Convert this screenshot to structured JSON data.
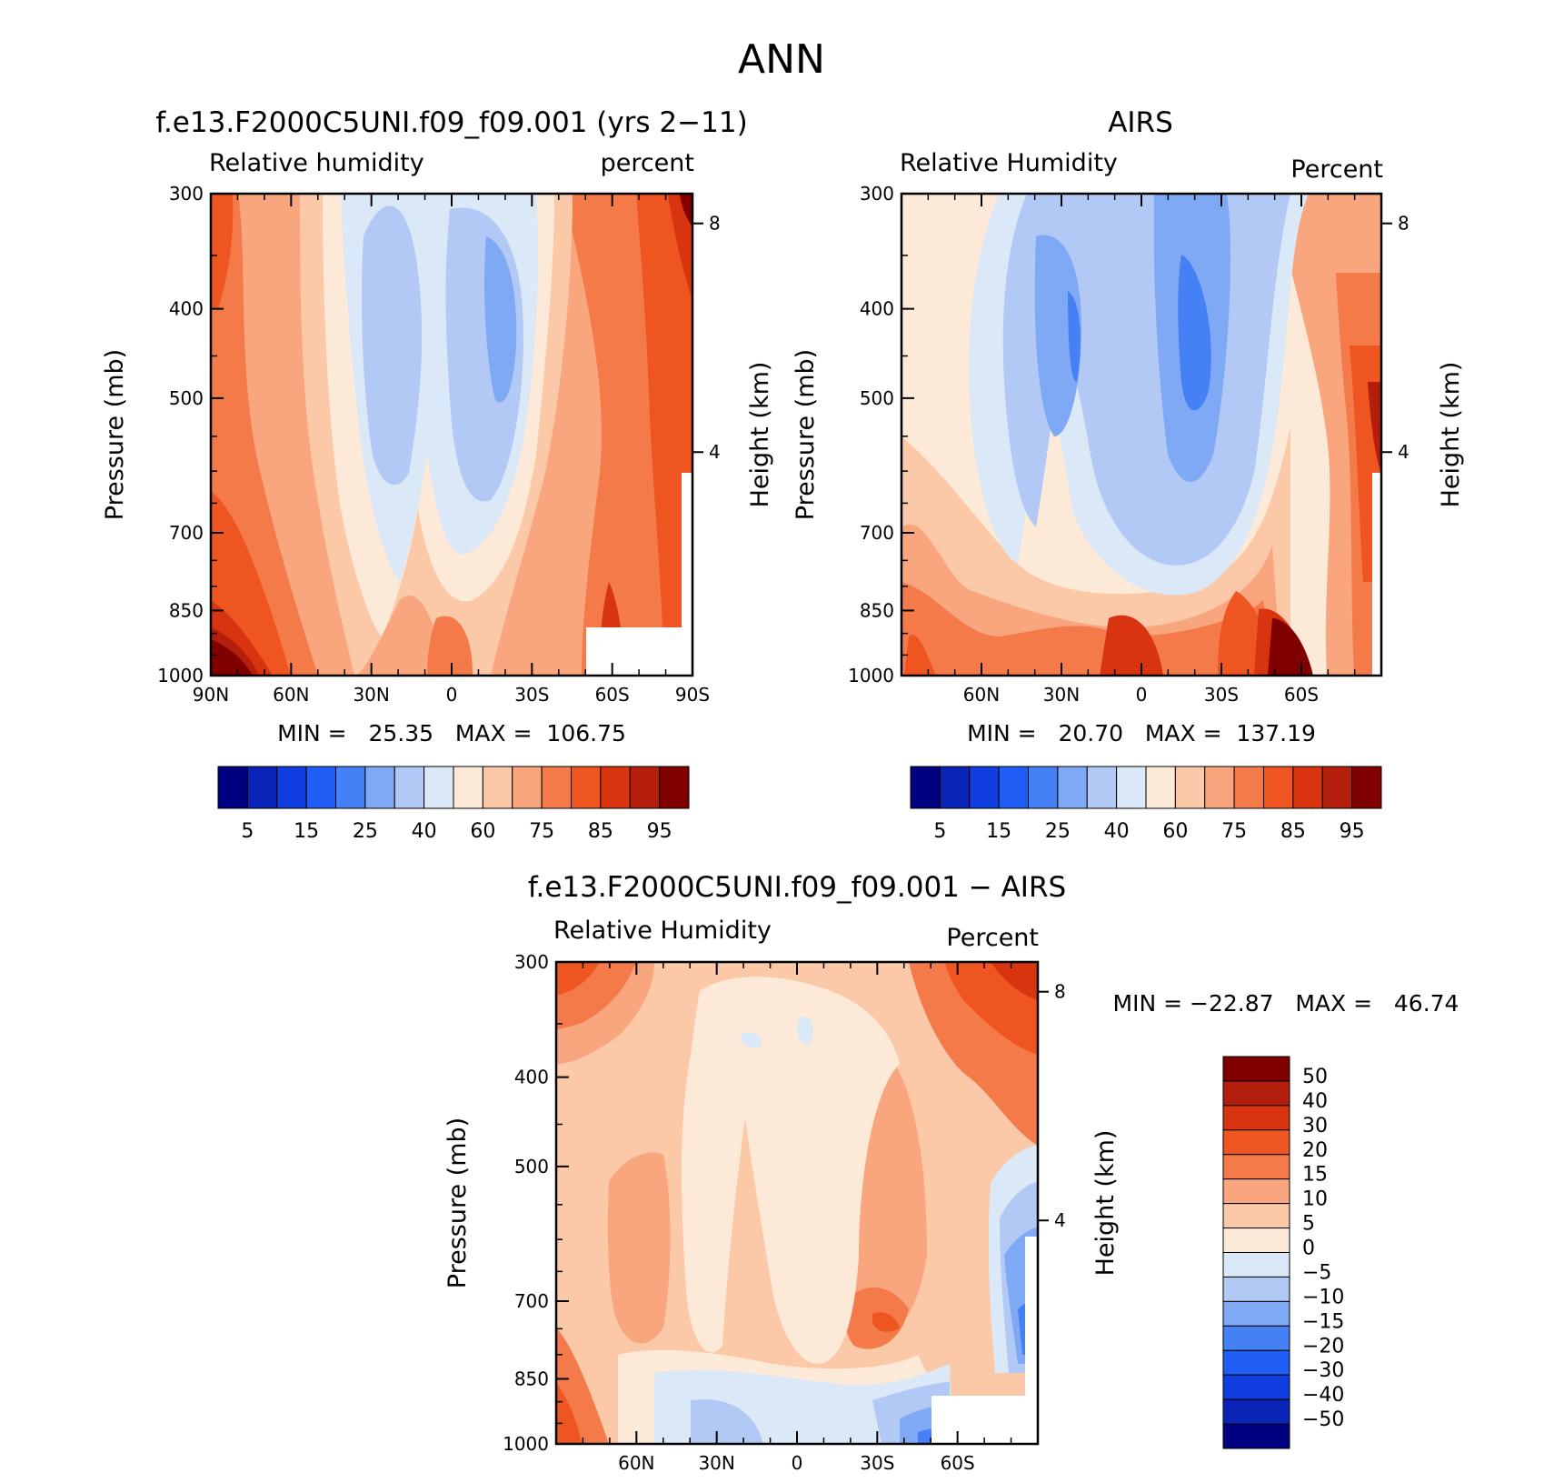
{
  "figure": {
    "season": "ANN"
  },
  "palettes": {
    "abs": [
      "#000080",
      "#0a24b8",
      "#0f3de0",
      "#1f5df5",
      "#4680f5",
      "#7fa8f5",
      "#b3c9f5",
      "#dae8f8",
      "#fde9d8",
      "#fbc8a8",
      "#f9a57e",
      "#f47a4a",
      "#ee5520",
      "#d93410",
      "#b31e0d",
      "#800000"
    ],
    "diff": [
      "#000080",
      "#0a24b8",
      "#0f3de0",
      "#1f5df5",
      "#4680f5",
      "#7fa8f5",
      "#b3c9f5",
      "#dae8f8",
      "#fde9d8",
      "#fbc8a8",
      "#f9a57e",
      "#f47a4a",
      "#ee5520",
      "#d93410",
      "#b31e0d",
      "#800000"
    ]
  },
  "chart_data": [
    {
      "type": "heatmap",
      "panel": "model",
      "title": "f.e13.F2000C5UNI.f09_f09.001 (yrs 2−11)",
      "left_label": "Relative humidity",
      "right_label": "percent",
      "ylabel": "Pressure (mb)",
      "y2label": "Height (km)",
      "x_ticks": [
        "90N",
        "60N",
        "30N",
        "0",
        "30S",
        "60S",
        "90S"
      ],
      "y_ticks": [
        "300",
        "400",
        "500",
        "700",
        "850",
        "1000"
      ],
      "y2_ticks": [
        "8",
        "4"
      ],
      "ylim": [
        1000,
        300
      ],
      "stats": "MIN =   25.35   MAX =  106.75",
      "min": 25.35,
      "max": 106.75,
      "colorbar_labels": [
        "5",
        "15",
        "25",
        "40",
        "60",
        "75",
        "85",
        "95"
      ],
      "levels": [
        5,
        10,
        15,
        20,
        25,
        30,
        40,
        50,
        60,
        70,
        75,
        80,
        85,
        90,
        95
      ]
    },
    {
      "type": "heatmap",
      "panel": "obs",
      "title": "AIRS",
      "left_label": "Relative Humidity",
      "right_label": "Percent",
      "ylabel": "Pressure (mb)",
      "y2label": "Height (km)",
      "x_ticks": [
        "60N",
        "30N",
        "0",
        "30S",
        "60S"
      ],
      "y_ticks": [
        "300",
        "400",
        "500",
        "700",
        "850",
        "1000"
      ],
      "y2_ticks": [
        "8",
        "4"
      ],
      "ylim": [
        1000,
        300
      ],
      "stats": "MIN =   20.70   MAX =  137.19",
      "min": 20.7,
      "max": 137.19,
      "colorbar_labels": [
        "5",
        "15",
        "25",
        "40",
        "60",
        "75",
        "85",
        "95"
      ],
      "levels": [
        5,
        10,
        15,
        20,
        25,
        30,
        40,
        50,
        60,
        70,
        75,
        80,
        85,
        90,
        95
      ]
    },
    {
      "type": "heatmap",
      "panel": "diff",
      "title": "f.e13.F2000C5UNI.f09_f09.001 − AIRS",
      "left_label": "Relative Humidity",
      "right_label": "Percent",
      "ylabel": "Pressure (mb)",
      "y2label": "Height (km)",
      "x_ticks": [
        "60N",
        "30N",
        "0",
        "30S",
        "60S"
      ],
      "y_ticks": [
        "300",
        "400",
        "500",
        "700",
        "850",
        "1000"
      ],
      "y2_ticks": [
        "8",
        "4"
      ],
      "ylim": [
        1000,
        300
      ],
      "stats": "MIN = −22.87   MAX =   46.74",
      "min": -22.87,
      "max": 46.74,
      "colorbar_labels": [
        "50",
        "40",
        "30",
        "20",
        "15",
        "10",
        "5",
        "0",
        "−5",
        "−10",
        "−15",
        "−20",
        "−30",
        "−40",
        "−50"
      ],
      "levels": [
        -50,
        -40,
        -30,
        -20,
        -15,
        -10,
        -5,
        0,
        5,
        10,
        15,
        20,
        30,
        40,
        50
      ]
    }
  ]
}
